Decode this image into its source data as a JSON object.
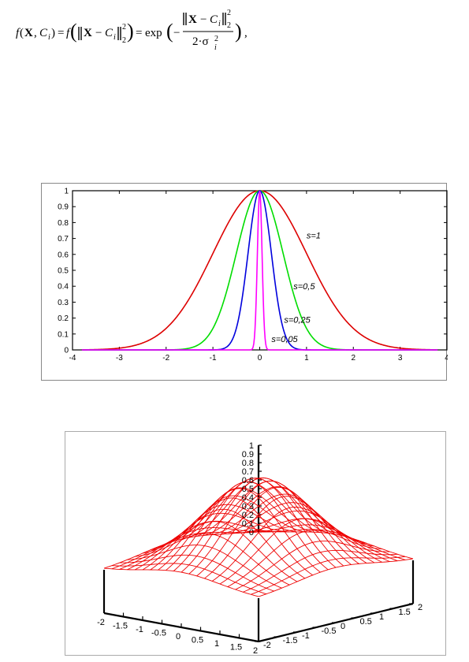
{
  "formula": {
    "f": "f",
    "X": "X",
    "comma": ",",
    "C": "C",
    "i": "i",
    "eq": "=",
    "exp": "exp",
    "minus": "−",
    "two": "2",
    "denom_two": "2·σ",
    "trailing": ","
  },
  "chart_data": [
    {
      "type": "line",
      "xlim": [
        -4,
        4
      ],
      "ylim": [
        0,
        1
      ],
      "xticks": [
        "-4",
        "-3",
        "-2",
        "-1",
        "0",
        "1",
        "2",
        "3",
        "4"
      ],
      "yticks": [
        "0",
        "0.1",
        "0.2",
        "0.3",
        "0.4",
        "0.5",
        "0.6",
        "0.7",
        "0.8",
        "0.9",
        "1"
      ],
      "series": [
        {
          "label": "s=1",
          "sigma": 1,
          "color": "#dd0000"
        },
        {
          "label": "s=0,5",
          "sigma": 0.5,
          "color": "#00dd00"
        },
        {
          "label": "s=0,25",
          "sigma": 0.25,
          "color": "#0000dd"
        },
        {
          "label": "s=0,05",
          "sigma": 0.05,
          "color": "#ff00ff"
        }
      ],
      "function": "exp(-x^2/(2*s^2))",
      "grid": false
    },
    {
      "type": "surface",
      "function": "exp(-(x^2+y^2)/2)",
      "xlim": [
        -2,
        2
      ],
      "ylim": [
        -2,
        2
      ],
      "zlim": [
        0,
        1
      ],
      "xticks": [
        "-2",
        "-1.5",
        "-1",
        "-0.5",
        "0",
        "0.5",
        "1",
        "1.5",
        "2"
      ],
      "yticks": [
        "-2",
        "-1.5",
        "-1",
        "-0.5",
        "0",
        "0.5",
        "1",
        "1.5",
        "2"
      ],
      "zticks": [
        "0",
        "0.1",
        "0.2",
        "0.3",
        "0.4",
        "0.5",
        "0.6",
        "0.7",
        "0.8",
        "0.9",
        "1"
      ],
      "color": "#ee0000"
    }
  ]
}
